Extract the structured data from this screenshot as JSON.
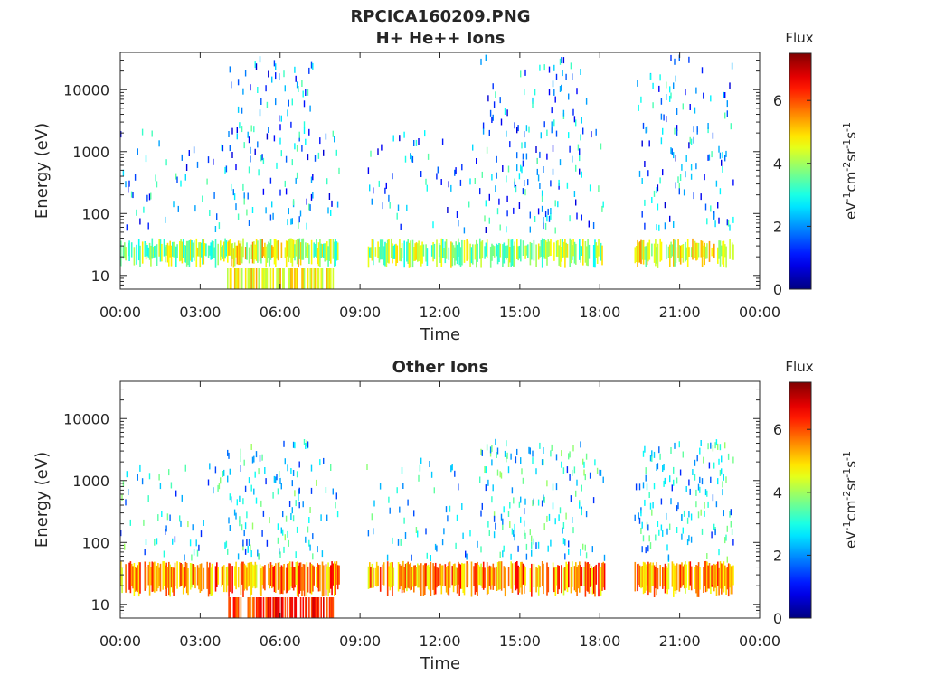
{
  "figure_title": "RPCICA160209.PNG",
  "chart_data": [
    {
      "type": "heatmap",
      "title": "H+ He++ Ions",
      "xlabel": "Time",
      "ylabel": "Energy (eV)",
      "y_scale": "log",
      "ylim": [
        6,
        40000
      ],
      "x_ticks": [
        "00:00",
        "03:00",
        "06:00",
        "09:00",
        "12:00",
        "15:00",
        "18:00",
        "21:00",
        "00:00"
      ],
      "x_tick_hours": [
        0,
        3,
        6,
        9,
        12,
        15,
        18,
        21,
        24
      ],
      "y_ticks": [
        "10",
        "100",
        "1000",
        "10000"
      ],
      "y_tick_values": [
        10,
        100,
        1000,
        10000
      ],
      "colorbar": {
        "label": "Flux",
        "unit": "eV-1cm-2sr-1s-1",
        "ticks": [
          "0",
          "2",
          "4",
          "6"
        ],
        "tick_values": [
          0,
          2,
          4,
          6
        ],
        "range": [
          0,
          7.5
        ],
        "colormap": "jet"
      },
      "segments": [
        {
          "start_hour": 0.0,
          "end_hour": 8.2
        },
        {
          "start_hour": 9.2,
          "end_hour": 18.2
        },
        {
          "start_hour": 19.3,
          "end_hour": 23.0
        }
      ],
      "grid": false
    },
    {
      "type": "heatmap",
      "title": "Other Ions",
      "xlabel": "Time",
      "ylabel": "Energy (eV)",
      "y_scale": "log",
      "ylim": [
        6,
        40000
      ],
      "x_ticks": [
        "00:00",
        "03:00",
        "06:00",
        "09:00",
        "12:00",
        "15:00",
        "18:00",
        "21:00",
        "00:00"
      ],
      "x_tick_hours": [
        0,
        3,
        6,
        9,
        12,
        15,
        18,
        21,
        24
      ],
      "y_ticks": [
        "10",
        "100",
        "1000",
        "10000"
      ],
      "y_tick_values": [
        10,
        100,
        1000,
        10000
      ],
      "colorbar": {
        "label": "Flux",
        "unit": "eV-1cm-2sr-1s-1",
        "ticks": [
          "0",
          "2",
          "4",
          "6"
        ],
        "tick_values": [
          0,
          2,
          4,
          6
        ],
        "range": [
          0,
          7.5
        ],
        "colormap": "jet"
      },
      "segments": [
        {
          "start_hour": 0.0,
          "end_hour": 8.2
        },
        {
          "start_hour": 9.2,
          "end_hour": 18.2
        },
        {
          "start_hour": 19.3,
          "end_hour": 23.0
        }
      ],
      "grid": false
    }
  ]
}
